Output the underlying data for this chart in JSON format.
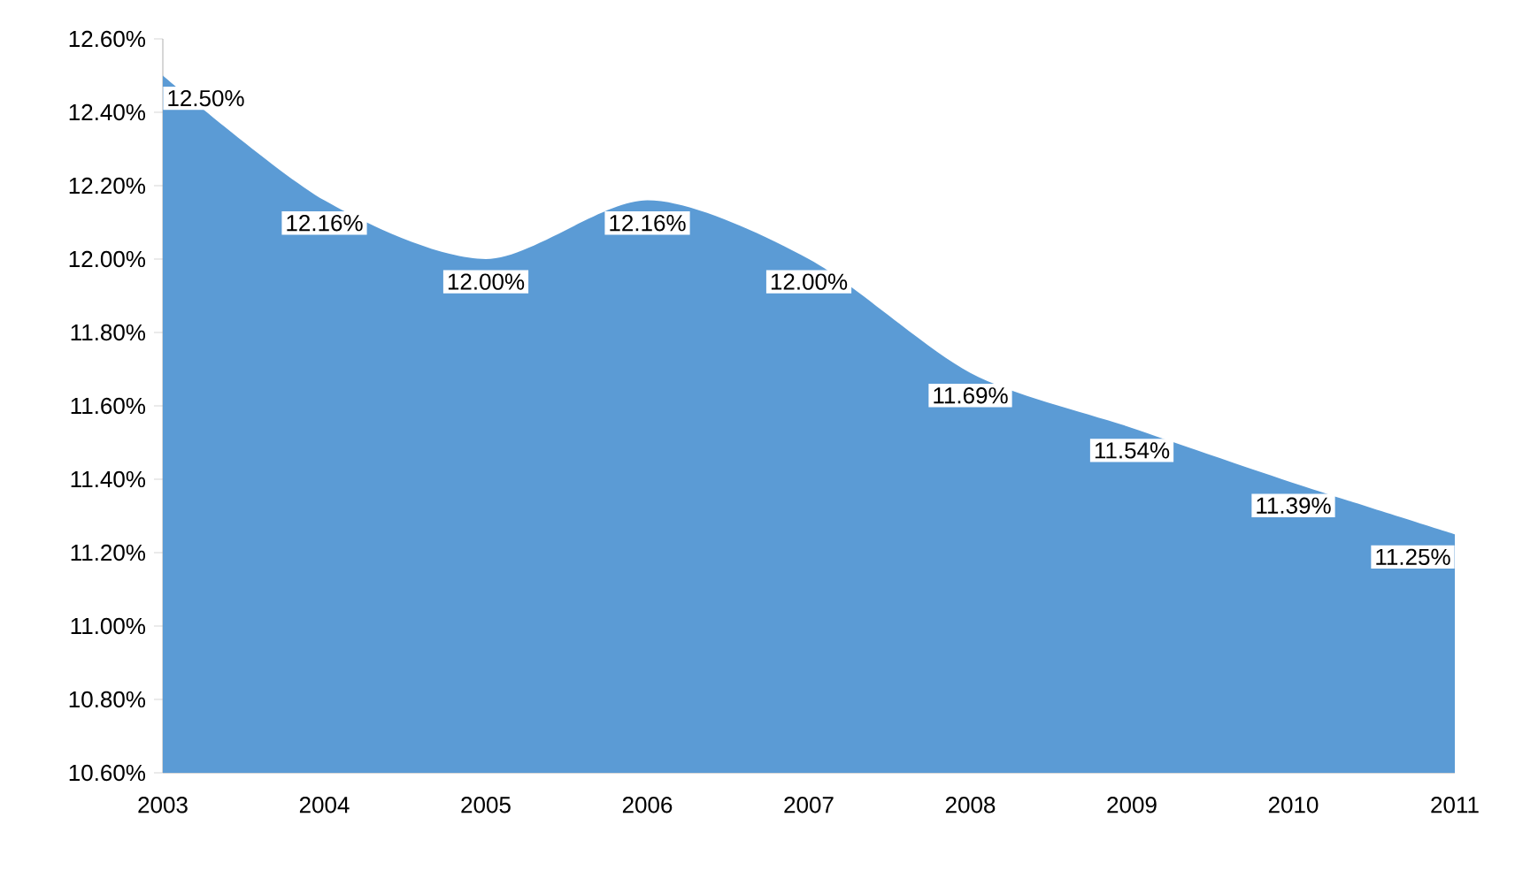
{
  "chart_data": {
    "type": "area",
    "categories": [
      "2003",
      "2004",
      "2005",
      "2006",
      "2007",
      "2008",
      "2009",
      "2010",
      "2011"
    ],
    "values": [
      12.5,
      12.16,
      12.0,
      12.16,
      12.0,
      11.69,
      11.54,
      11.39,
      11.25
    ],
    "value_labels": [
      "12.50%",
      "12.16%",
      "12.00%",
      "12.16%",
      "12.00%",
      "11.69%",
      "11.54%",
      "11.39%",
      "11.25%"
    ],
    "color": "#5b9bd5",
    "ylim": [
      10.6,
      12.6
    ],
    "yticks": [
      {
        "value": 10.6,
        "label": "10.60%"
      },
      {
        "value": 10.8,
        "label": "10.80%"
      },
      {
        "value": 11.0,
        "label": "11.00%"
      },
      {
        "value": 11.2,
        "label": "11.20%"
      },
      {
        "value": 11.4,
        "label": "11.40%"
      },
      {
        "value": 11.6,
        "label": "11.60%"
      },
      {
        "value": 11.8,
        "label": "11.80%"
      },
      {
        "value": 12.0,
        "label": "12.00%"
      },
      {
        "value": 12.2,
        "label": "12.20%"
      },
      {
        "value": 12.4,
        "label": "12.40%"
      },
      {
        "value": 12.6,
        "label": "12.60%"
      }
    ]
  }
}
